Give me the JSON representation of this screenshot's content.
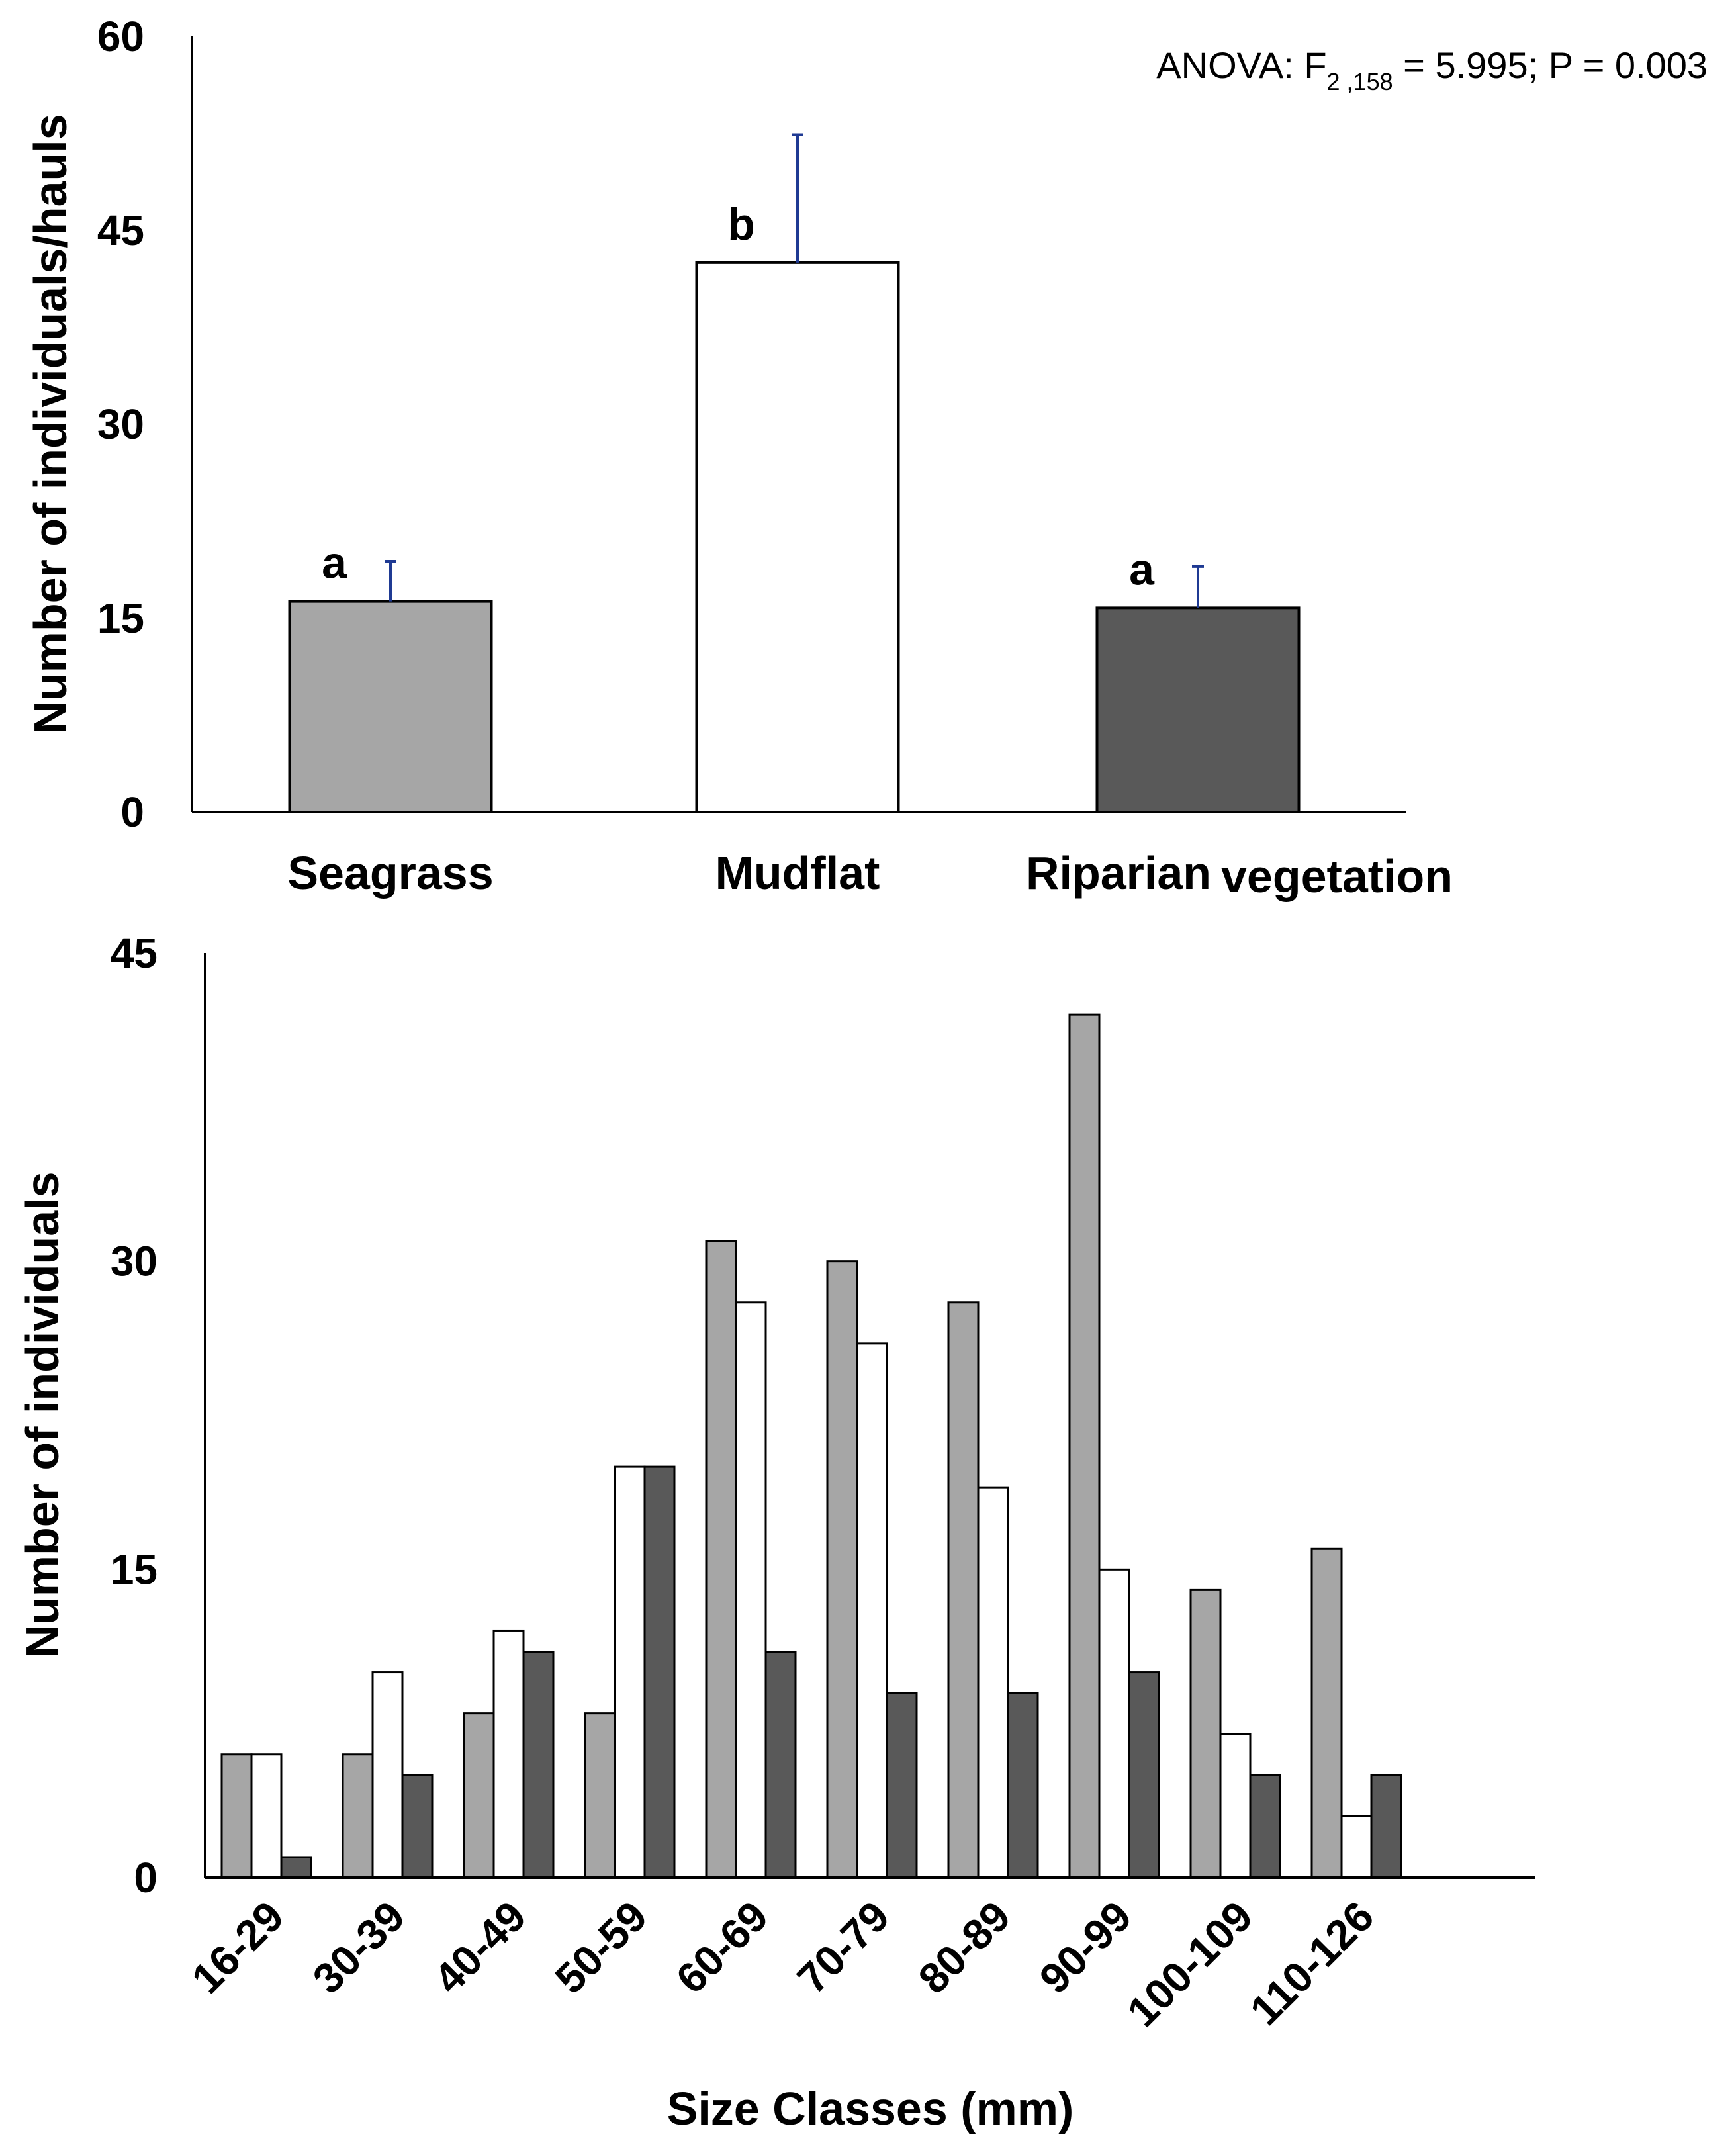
{
  "colors": {
    "Seagrass": "#a6a6a6",
    "Mudflat": "#ffffff",
    "Riparian vegetation": "#595959",
    "error_bar": "#1f3a93",
    "axis": "#000000"
  },
  "chart_data": [
    {
      "type": "bar",
      "categories": [
        "Seagrass",
        "Mudflat",
        "Riparian vegetation"
      ],
      "category_lines": [
        [
          "Seagrass"
        ],
        [
          "Mudflat"
        ],
        [
          "Riparian",
          "vegetation"
        ]
      ],
      "values": [
        16.3,
        42.5,
        15.8
      ],
      "errors": [
        3.1,
        9.9,
        3.2
      ],
      "significance": [
        "a",
        "b",
        "a"
      ],
      "ylabel": "Number of individuals/hauls",
      "xlabel": "",
      "ylim": [
        0,
        60
      ],
      "yticks": [
        0,
        15,
        30,
        45,
        60
      ],
      "annotation": {
        "prefix": "ANOVA: F",
        "subscript": "2 ,158",
        "suffix": " = 5.995; P = 0.003"
      },
      "grid": false,
      "legend": "none"
    },
    {
      "type": "bar",
      "categories": [
        "16-29",
        "30-39",
        "40-49",
        "50-59",
        "60-69",
        "70-79",
        "80-89",
        "90-99",
        "100-109",
        "110-126"
      ],
      "series": [
        {
          "name": "Seagrass",
          "values": [
            6,
            6,
            8,
            8,
            31,
            30,
            28,
            42,
            14,
            16
          ]
        },
        {
          "name": "Mudflat",
          "values": [
            6,
            10,
            12,
            20,
            28,
            26,
            19,
            15,
            7,
            3
          ]
        },
        {
          "name": "Riparian vegetation",
          "values": [
            1,
            5,
            11,
            20,
            11,
            9,
            9,
            10,
            5,
            5
          ]
        }
      ],
      "xlabel": "Size Classes (mm)",
      "ylabel": "Number of individuals",
      "ylim": [
        0,
        45
      ],
      "yticks": [
        0,
        15,
        30,
        45
      ],
      "grid": false,
      "legend": "none"
    }
  ]
}
